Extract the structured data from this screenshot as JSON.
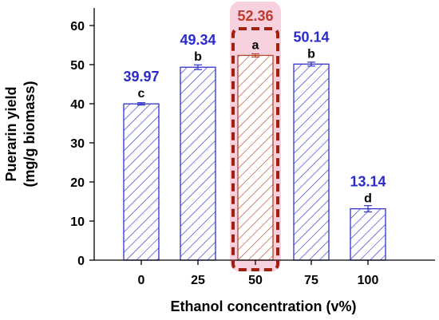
{
  "chart_data": {
    "type": "bar",
    "categories": [
      "0",
      "25",
      "50",
      "75",
      "100"
    ],
    "values": [
      39.97,
      49.34,
      52.36,
      50.14,
      13.14
    ],
    "error": [
      0.3,
      0.6,
      0.4,
      0.5,
      0.8
    ],
    "value_labels": [
      "39.97",
      "49.34",
      "52.36",
      "50.14",
      "13.14"
    ],
    "letters": [
      "c",
      "b",
      "a",
      "b",
      "d"
    ],
    "highlight_index": 2,
    "xlabel": "Ethanol concentration (v%)",
    "ylabel_line1": "Puerarin yield",
    "ylabel_line2": "(mg/g biomass)",
    "ylim": [
      0,
      60
    ],
    "yticks": [
      0,
      10,
      20,
      30,
      40,
      50,
      60
    ],
    "grid": false,
    "colors": {
      "bar": "#3333cc",
      "highlight_bar": "#b5482f",
      "value_label": "#2b2bcc",
      "highlight_value_label": "#c0392b",
      "highlight_box": "#a0200f",
      "highlight_glow": "#f4c2d2"
    }
  }
}
